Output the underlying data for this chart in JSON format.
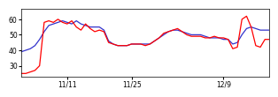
{
  "red_y": [
    25,
    25,
    26,
    27,
    30,
    58,
    59,
    58,
    60,
    58,
    57,
    59,
    55,
    53,
    57,
    54,
    52,
    53,
    52,
    45,
    44,
    43,
    43,
    43,
    44,
    44,
    44,
    43,
    44,
    46,
    48,
    51,
    52,
    53,
    54,
    52,
    50,
    49,
    49,
    49,
    48,
    48,
    49,
    48,
    48,
    47,
    41,
    42,
    60,
    62,
    55,
    43,
    42,
    47,
    47
  ],
  "blue_y": [
    39,
    40,
    41,
    43,
    47,
    52,
    56,
    57,
    58,
    59,
    58,
    57,
    59,
    57,
    56,
    55,
    55,
    55,
    53,
    46,
    44,
    43,
    43,
    43,
    44,
    44,
    44,
    44,
    44,
    46,
    48,
    50,
    52,
    53,
    53,
    52,
    51,
    50,
    50,
    50,
    49,
    48,
    48,
    48,
    47,
    47,
    44,
    45,
    50,
    54,
    55,
    54,
    53,
    53,
    53
  ],
  "xtick_positions": [
    10,
    24,
    44
  ],
  "xtick_labels": [
    "11/11",
    "11/25",
    "12/9"
  ],
  "ytick_positions": [
    30,
    40,
    50,
    60
  ],
  "ylim": [
    23,
    67
  ],
  "xlim": [
    0,
    54
  ],
  "red_color": "#ff0000",
  "blue_color": "#3333cc",
  "bg_color": "#ffffff",
  "linewidth": 0.9
}
